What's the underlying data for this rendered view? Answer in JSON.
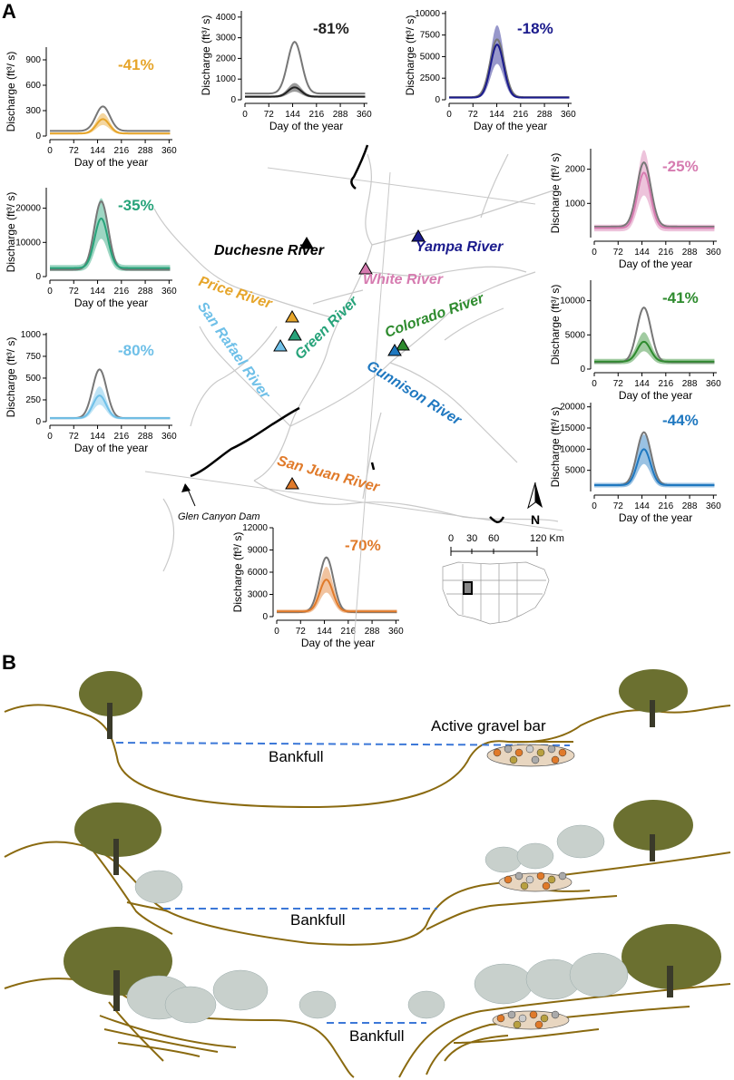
{
  "panels": {
    "a": "A",
    "b": "B"
  },
  "axis": {
    "ylabel": "Discharge (ft³/ s)",
    "xlabel": "Day of the year",
    "xticks": [
      "0",
      "72",
      "144",
      "216",
      "288",
      "360"
    ]
  },
  "hydrographs": [
    {
      "id": "price",
      "pct": "-41%",
      "color": "#e6a52a",
      "yticks": [
        "0",
        "300",
        "600",
        "900"
      ],
      "ymax": 1050,
      "peak_day": 160,
      "pre_peak": 350,
      "post_peak": 200,
      "base_pre": 60,
      "base_post": 30
    },
    {
      "id": "duchesne",
      "pct": "-81%",
      "color": "#222222",
      "yticks": [
        "0",
        "1000",
        "2000",
        "3000",
        "4000"
      ],
      "ymax": 4300,
      "peak_day": 150,
      "pre_peak": 2800,
      "post_peak": 600,
      "base_pre": 300,
      "base_post": 150
    },
    {
      "id": "yampa",
      "pct": "-18%",
      "color": "#1a1a8c",
      "yticks": [
        "0",
        "2500",
        "5000",
        "7500",
        "10000"
      ],
      "ymax": 10300,
      "peak_day": 145,
      "pre_peak": 7000,
      "post_peak": 6400,
      "base_pre": 300,
      "base_post": 250
    },
    {
      "id": "white",
      "pct": "-25%",
      "color": "#d67bb0",
      "yticks": [
        "1000",
        "2000"
      ],
      "ymax": 2600,
      "ymin": 0,
      "peak_day": 150,
      "pre_peak": 2200,
      "post_peak": 1900,
      "base_pre": 320,
      "base_post": 280
    },
    {
      "id": "green",
      "pct": "-35%",
      "color": "#27a37a",
      "yticks": [
        "0",
        "10000",
        "20000"
      ],
      "ymax": 26000,
      "peak_day": 155,
      "pre_peak": 22000,
      "post_peak": 17000,
      "base_pre": 2000,
      "base_post": 2500
    },
    {
      "id": "colorado",
      "pct": "-41%",
      "color": "#2e8b2e",
      "yticks": [
        "0",
        "5000",
        "10000"
      ],
      "ymax": 13000,
      "peak_day": 150,
      "pre_peak": 9000,
      "post_peak": 4000,
      "base_pre": 1000,
      "base_post": 1100
    },
    {
      "id": "sanrafael",
      "pct": "-80%",
      "color": "#6fc0e8",
      "yticks": [
        "0",
        "250",
        "500",
        "750",
        "1000"
      ],
      "ymax": 1020,
      "peak_day": 150,
      "pre_peak": 600,
      "post_peak": 300,
      "base_pre": 40,
      "base_post": 40
    },
    {
      "id": "gunnison",
      "pct": "-44%",
      "color": "#1f78c0",
      "yticks": [
        "5000",
        "10000",
        "15000",
        "20000"
      ],
      "ymax": 21000,
      "ymin": 0,
      "peak_day": 150,
      "pre_peak": 14000,
      "post_peak": 10000,
      "base_pre": 1500,
      "base_post": 1500
    },
    {
      "id": "sanjuan",
      "pct": "-70%",
      "color": "#e07a2a",
      "yticks": [
        "0",
        "3000",
        "6000",
        "9000",
        "12000"
      ],
      "ymax": 12000,
      "peak_day": 150,
      "pre_peak": 8000,
      "post_peak": 5000,
      "base_pre": 600,
      "base_post": 700
    }
  ],
  "rivers": [
    {
      "label": "Duchesne River",
      "color": "#000000"
    },
    {
      "label": "Yampa River",
      "color": "#1a1a8c"
    },
    {
      "label": "White River",
      "color": "#d67bb0"
    },
    {
      "label": "Price River",
      "color": "#e6a52a"
    },
    {
      "label": "Green River",
      "color": "#27a37a"
    },
    {
      "label": "Colorado River",
      "color": "#2e8b2e"
    },
    {
      "label": "San Rafael River",
      "color": "#6fc0e8"
    },
    {
      "label": "Gunnison River",
      "color": "#1f78c0"
    },
    {
      "label": "San Juan River",
      "color": "#e07a2a"
    }
  ],
  "map": {
    "dam_label": "Glen Canyon Dam",
    "north": "N",
    "scale_ticks": [
      "0",
      "30",
      "60",
      "120 Km"
    ]
  },
  "panel_b": {
    "bankfull": "Bankfull",
    "gravel": "Active gravel bar"
  },
  "colors": {
    "bank": "#8a6a10",
    "bankfull_line": "#3c78d8",
    "tree_dark": "#6b7030",
    "tree_light": "#c8d0cc"
  }
}
